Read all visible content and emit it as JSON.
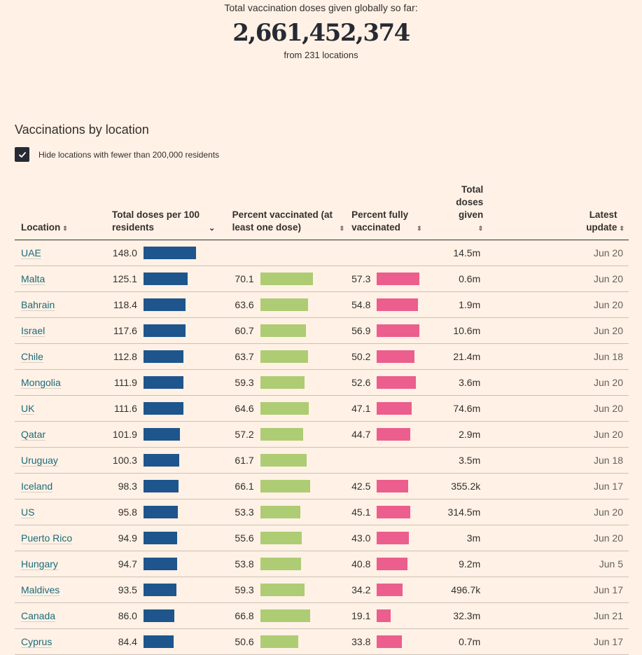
{
  "hero": {
    "label": "Total vaccination doses given globally so far:",
    "total": "2,661,452,374",
    "sub": "from 231 locations"
  },
  "section_title": "Vaccinations by location",
  "filter": {
    "checked": true,
    "label": "Hide locations with fewer than 200,000 residents"
  },
  "columns": [
    {
      "label": "Location",
      "sort": "unsorted"
    },
    {
      "label": "Total doses per 100 residents",
      "sort": "descending"
    },
    {
      "label": "Percent vaccinated (at least one dose)",
      "sort": "unsorted"
    },
    {
      "label": "Percent fully vaccinated",
      "sort": "unsorted"
    },
    {
      "label": "Total doses given",
      "sort": "unsorted"
    },
    {
      "label": "Latest update",
      "sort": "unsorted"
    }
  ],
  "colors": {
    "doses_bar": "#1e558c",
    "one_dose_bar": "#aecc73",
    "fully_bar": "#eb5e8d",
    "link": "#1a6b7a",
    "background": "#fff1e5"
  },
  "chart_data": {
    "type": "table",
    "title": "Vaccinations by location",
    "columns": [
      "Location",
      "Total doses per 100 residents",
      "Percent vaccinated (at least one dose)",
      "Percent fully vaccinated",
      "Total doses given",
      "Latest update"
    ],
    "rows": [
      {
        "location": "UAE",
        "per100": 148.0,
        "one_dose": null,
        "fully": null,
        "total": "14.5m",
        "date": "Jun 20"
      },
      {
        "location": "Malta",
        "per100": 125.1,
        "one_dose": 70.1,
        "fully": 57.3,
        "total": "0.6m",
        "date": "Jun 20"
      },
      {
        "location": "Bahrain",
        "per100": 118.4,
        "one_dose": 63.6,
        "fully": 54.8,
        "total": "1.9m",
        "date": "Jun 20"
      },
      {
        "location": "Israel",
        "per100": 117.6,
        "one_dose": 60.7,
        "fully": 56.9,
        "total": "10.6m",
        "date": "Jun 20"
      },
      {
        "location": "Chile",
        "per100": 112.8,
        "one_dose": 63.7,
        "fully": 50.2,
        "total": "21.4m",
        "date": "Jun 18"
      },
      {
        "location": "Mongolia",
        "per100": 111.9,
        "one_dose": 59.3,
        "fully": 52.6,
        "total": "3.6m",
        "date": "Jun 20"
      },
      {
        "location": "UK",
        "per100": 111.6,
        "one_dose": 64.6,
        "fully": 47.1,
        "total": "74.6m",
        "date": "Jun 20"
      },
      {
        "location": "Qatar",
        "per100": 101.9,
        "one_dose": 57.2,
        "fully": 44.7,
        "total": "2.9m",
        "date": "Jun 20"
      },
      {
        "location": "Uruguay",
        "per100": 100.3,
        "one_dose": 61.7,
        "fully": null,
        "total": "3.5m",
        "date": "Jun 18"
      },
      {
        "location": "Iceland",
        "per100": 98.3,
        "one_dose": 66.1,
        "fully": 42.5,
        "total": "355.2k",
        "date": "Jun 17"
      },
      {
        "location": "US",
        "per100": 95.8,
        "one_dose": 53.3,
        "fully": 45.1,
        "total": "314.5m",
        "date": "Jun 20"
      },
      {
        "location": "Puerto Rico",
        "per100": 94.9,
        "one_dose": 55.6,
        "fully": 43.0,
        "total": "3m",
        "date": "Jun 20"
      },
      {
        "location": "Hungary",
        "per100": 94.7,
        "one_dose": 53.8,
        "fully": 40.8,
        "total": "9.2m",
        "date": "Jun 5"
      },
      {
        "location": "Maldives",
        "per100": 93.5,
        "one_dose": 59.3,
        "fully": 34.2,
        "total": "496.7k",
        "date": "Jun 17"
      },
      {
        "location": "Canada",
        "per100": 86.0,
        "one_dose": 66.8,
        "fully": 19.1,
        "total": "32.3m",
        "date": "Jun 21"
      },
      {
        "location": "Cyprus",
        "per100": 84.4,
        "one_dose": 50.6,
        "fully": 33.8,
        "total": "0.7m",
        "date": "Jun 17"
      }
    ]
  }
}
